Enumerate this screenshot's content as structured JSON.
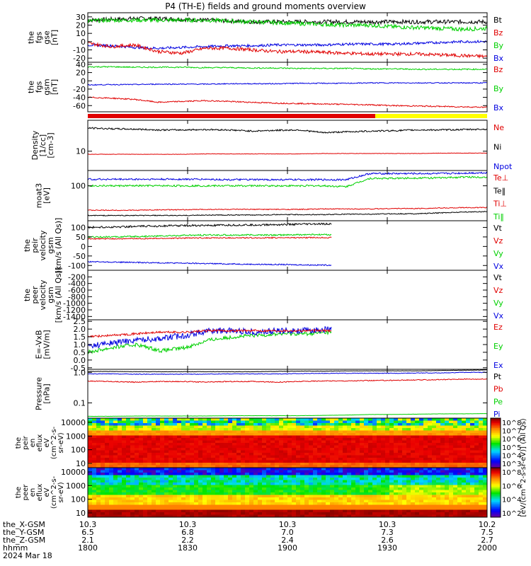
{
  "title": "P4 (TH-E) fields and ground moments overview",
  "colors": {
    "black": "#000000",
    "red": "#e00000",
    "green": "#00d000",
    "blue": "#0000e0",
    "yellow": "#ffff00"
  },
  "panels": [
    {
      "id": "fgs_gse",
      "ylabel": [
        "the",
        "fgs",
        "gse",
        "[nT]"
      ],
      "ticks": [
        "30",
        "20",
        "10",
        "0",
        "-10",
        "-20"
      ],
      "tickvals": [
        30,
        20,
        10,
        0,
        -10,
        -20
      ],
      "ylim": [
        -25,
        35
      ],
      "legend": [
        {
          "text": "Bt",
          "color": "black"
        },
        {
          "text": "Bz",
          "color": "red"
        },
        {
          "text": "By",
          "color": "green"
        },
        {
          "text": "Bx",
          "color": "blue"
        }
      ],
      "series": [
        {
          "name": "Bt",
          "color": "black",
          "base": [
            26,
            27,
            28,
            28,
            27,
            26,
            25,
            24,
            24,
            24,
            24,
            24,
            24,
            24,
            24,
            24,
            24,
            24
          ],
          "noise": 2.5
        },
        {
          "name": "Bz",
          "color": "green",
          "base": [
            25,
            26,
            26,
            26,
            26,
            26,
            25,
            24,
            23,
            22,
            21,
            20,
            20,
            18,
            17,
            16,
            15,
            16
          ],
          "noise": 2.5
        },
        {
          "name": "By",
          "color": "blue",
          "base": [
            -4,
            -5,
            -7,
            -8,
            -7,
            -6,
            -5,
            -5,
            -4,
            -4,
            -4,
            -3,
            -3,
            -3,
            -2,
            -1,
            0,
            0
          ],
          "noise": 1.5
        },
        {
          "name": "Bx",
          "color": "red",
          "base": [
            -2,
            -6,
            -4,
            -12,
            -14,
            -8,
            -8,
            -10,
            -12,
            -12,
            -13,
            -14,
            -15,
            -15,
            -15,
            -16,
            -17,
            -18
          ],
          "noise": 2
        }
      ]
    },
    {
      "id": "fgs_gsm",
      "ylabel": [
        "the",
        "fgs",
        "gsm",
        "[nT]"
      ],
      "ticks": [
        "40",
        "20",
        "0",
        "-20",
        "-40",
        "-60"
      ],
      "tickvals": [
        40,
        20,
        0,
        -20,
        -40,
        -60
      ],
      "ylim": [
        -75,
        45
      ],
      "legend": [
        {
          "text": "Bz",
          "color": "red"
        },
        {
          "text": "By",
          "color": "green"
        },
        {
          "text": "Bx",
          "color": "blue"
        }
      ],
      "series": [
        {
          "name": "Bz",
          "color": "green",
          "base": [
            34,
            34,
            33,
            33,
            33,
            32,
            32,
            31,
            31,
            30,
            30,
            30,
            29,
            29,
            28,
            28,
            28,
            28
          ],
          "noise": 1.5
        },
        {
          "name": "By",
          "color": "blue",
          "base": [
            -10,
            -9,
            -9,
            -8,
            -8,
            -8,
            -7,
            -7,
            -7,
            -6,
            -6,
            -6,
            -5,
            -5,
            -5,
            -5,
            -5,
            -5
          ],
          "noise": 1.2
        },
        {
          "name": "Bx",
          "color": "red",
          "base": [
            -40,
            -42,
            -45,
            -52,
            -50,
            -48,
            -50,
            -52,
            -54,
            -55,
            -56,
            -57,
            -58,
            -60,
            -61,
            -62,
            -63,
            -64
          ],
          "noise": 1.5
        }
      ]
    },
    {
      "id": "density",
      "ylabel": [
        "Density",
        "[1/cc]",
        "[cm-3]"
      ],
      "ticks": [
        "10"
      ],
      "tickvals": [
        1.0
      ],
      "ylim": [
        0.5,
        1.8
      ],
      "log": true,
      "legend": [
        {
          "text": "Ne",
          "color": "red"
        },
        {
          "text": "Ni",
          "color": "black"
        },
        {
          "text": "Npot",
          "color": "blue"
        }
      ],
      "series": [
        {
          "name": "Ne",
          "color": "black",
          "base": [
            1.6,
            1.58,
            1.57,
            1.55,
            1.55,
            1.56,
            1.55,
            1.52,
            1.54,
            1.55,
            1.48,
            1.5,
            1.52,
            1.53,
            1.55,
            1.55,
            1.56,
            1.57
          ],
          "noise": 0.02
        },
        {
          "name": "Ni",
          "color": "red",
          "base": [
            0.92,
            0.92,
            0.92,
            0.92,
            0.92,
            0.93,
            0.93,
            0.93,
            0.93,
            0.93,
            0.94,
            0.94,
            0.94,
            0.94,
            0.94,
            0.95,
            0.95,
            0.95
          ],
          "noise": 0.005
        }
      ]
    },
    {
      "id": "temp",
      "ylabel": [
        "moat3",
        "[eV]"
      ],
      "ticks": [
        "100"
      ],
      "tickvals": [
        2.0
      ],
      "ylim": [
        1.2,
        2.35
      ],
      "log": true,
      "legend": [
        {
          "text": "Te⊥",
          "color": "red"
        },
        {
          "text": "Te‖",
          "color": "black"
        },
        {
          "text": "Ti⊥",
          "color": "red"
        },
        {
          "text": "Ti‖",
          "color": "green"
        }
      ],
      "series": [
        {
          "name": "Ti⊥",
          "color": "blue",
          "base": [
            2.15,
            2.15,
            2.15,
            2.15,
            2.15,
            2.15,
            2.14,
            2.14,
            2.14,
            2.14,
            2.14,
            2.14,
            2.28,
            2.28,
            2.28,
            2.28,
            2.29,
            2.3
          ],
          "noise": 0.02
        },
        {
          "name": "Ti‖",
          "color": "green",
          "base": [
            2.0,
            2.0,
            2.0,
            2.0,
            2.0,
            2.0,
            2.0,
            2.0,
            2.0,
            2.0,
            2.0,
            1.98,
            2.17,
            2.17,
            2.18,
            2.18,
            2.2,
            2.2
          ],
          "noise": 0.02
        },
        {
          "name": "Te⊥",
          "color": "red",
          "base": [
            1.44,
            1.44,
            1.44,
            1.45,
            1.45,
            1.46,
            1.46,
            1.46,
            1.46,
            1.46,
            1.47,
            1.47,
            1.47,
            1.48,
            1.48,
            1.49,
            1.5,
            1.5
          ],
          "noise": 0.01
        },
        {
          "name": "Te‖",
          "color": "black",
          "base": [
            1.32,
            1.32,
            1.32,
            1.32,
            1.32,
            1.33,
            1.33,
            1.33,
            1.34,
            1.34,
            1.34,
            1.35,
            1.35,
            1.36,
            1.36,
            1.38,
            1.4,
            1.41
          ],
          "noise": 0.01
        }
      ]
    },
    {
      "id": "peir_vel",
      "ylabel": [
        "the",
        "peir",
        "velocity",
        "gsm",
        "[km/s (All Qs)]"
      ],
      "ticks": [
        "100",
        "50",
        "0",
        "-50",
        "-100"
      ],
      "tickvals": [
        100,
        50,
        0,
        -50,
        -100
      ],
      "ylim": [
        -125,
        135
      ],
      "legend": [
        {
          "text": "Vt",
          "color": "black"
        },
        {
          "text": "Vz",
          "color": "red"
        },
        {
          "text": "Vy",
          "color": "green"
        },
        {
          "text": "Vx",
          "color": "blue"
        }
      ],
      "end": 0.61,
      "series": [
        {
          "name": "Vt",
          "color": "black",
          "base": [
            100,
            102,
            105,
            108,
            110,
            110,
            112,
            113,
            115,
            117,
            118
          ],
          "noise": 5
        },
        {
          "name": "Vz",
          "color": "green",
          "base": [
            50,
            50,
            52,
            55,
            58,
            60,
            60,
            60,
            60,
            62,
            62
          ],
          "noise": 4
        },
        {
          "name": "Vy",
          "color": "red",
          "base": [
            40,
            40,
            41,
            42,
            44,
            45,
            45,
            45,
            46,
            46,
            47
          ],
          "noise": 3
        },
        {
          "name": "Vx",
          "color": "blue",
          "base": [
            -80,
            -82,
            -84,
            -86,
            -88,
            -90,
            -92,
            -94,
            -95,
            -97,
            -98
          ],
          "noise": 3
        }
      ]
    },
    {
      "id": "peer_vel",
      "ylabel": [
        "the",
        "peer",
        "velocity",
        "gsm",
        "[km/s (All Qs)]"
      ],
      "ticks": [
        "-200",
        "-400",
        "-600",
        "-800",
        "-1000",
        "-1200",
        "-1400"
      ],
      "tickvals": [
        -200,
        -400,
        -600,
        -800,
        -1000,
        -1200,
        -1400
      ],
      "ylim": [
        -1500,
        0
      ],
      "legend": [
        {
          "text": "Vt",
          "color": "black"
        },
        {
          "text": "Vz",
          "color": "red"
        },
        {
          "text": "Vy",
          "color": "green"
        },
        {
          "text": "Vx",
          "color": "blue"
        }
      ],
      "series": []
    },
    {
      "id": "efield",
      "ylabel": [
        "E=-VxB",
        "[mV/m]"
      ],
      "ticks": [
        "2.5",
        "2.0",
        "1.5",
        "1.0",
        "0.5",
        "0.0",
        "-0.5"
      ],
      "tickvals": [
        2.5,
        2.0,
        1.5,
        1.0,
        0.5,
        0.0,
        -0.5
      ],
      "ylim": [
        -0.6,
        2.6
      ],
      "legend": [
        {
          "text": "Ez",
          "color": "red"
        },
        {
          "text": "Ey",
          "color": "green"
        },
        {
          "text": "Ex",
          "color": "blue"
        }
      ],
      "end": 0.61,
      "series": [
        {
          "name": "Ey",
          "color": "green",
          "base": [
            0.5,
            0.8,
            1.0,
            0.6,
            0.8,
            1.3,
            1.5,
            1.6,
            1.7,
            1.7,
            1.8
          ],
          "noise": 0.12
        },
        {
          "name": "Ex",
          "color": "blue",
          "base": [
            0.9,
            1.1,
            1.3,
            1.4,
            1.6,
            1.9,
            1.9,
            1.8,
            1.9,
            1.9,
            2.0
          ],
          "noise": 0.2
        },
        {
          "name": "Ez",
          "color": "red",
          "base": [
            1.5,
            1.6,
            1.7,
            1.8,
            1.8,
            1.9,
            1.9,
            1.9,
            1.9,
            1.9,
            1.9
          ],
          "noise": 0.07
        }
      ]
    },
    {
      "id": "pressure",
      "ylabel": [
        "Pressure",
        "[nPa]"
      ],
      "ticks": [
        "1.0",
        "0.1"
      ],
      "tickvals": [
        0,
        -1
      ],
      "ylim": [
        -1.5,
        0.1
      ],
      "log": true,
      "legend": [
        {
          "text": "Pt",
          "color": "black"
        },
        {
          "text": "Pb",
          "color": "red"
        },
        {
          "text": "Pe",
          "color": "green"
        },
        {
          "text": "Pi",
          "color": "blue"
        }
      ],
      "series": [
        {
          "name": "Pt",
          "color": "black",
          "base": [
            0.03,
            0.03,
            0.02,
            0.02,
            0.02,
            0.02,
            0.02,
            0.02,
            0.03,
            0.04,
            0.04,
            0.05,
            0.05,
            0.05,
            0.05,
            0.06,
            0.07,
            0.08
          ],
          "noise": 0.005
        },
        {
          "name": "Pi",
          "color": "blue",
          "base": [
            -0.05,
            -0.05,
            -0.06,
            -0.06,
            -0.06,
            -0.06,
            -0.05,
            -0.05,
            -0.05,
            -0.04,
            -0.03,
            -0.03,
            -0.03,
            -0.03,
            -0.02,
            -0.02,
            0.0,
            0.0
          ],
          "noise": 0.01
        },
        {
          "name": "Pb",
          "color": "red",
          "base": [
            -0.28,
            -0.3,
            -0.32,
            -0.3,
            -0.3,
            -0.32,
            -0.3,
            -0.3,
            -0.32,
            -0.3,
            -0.28,
            -0.28,
            -0.27,
            -0.26,
            -0.25,
            -0.24,
            -0.22,
            -0.22
          ],
          "noise": 0.015
        },
        {
          "name": "Pe",
          "color": "green",
          "base": [
            -1.44,
            -1.44,
            -1.43,
            -1.43,
            -1.43,
            -1.43,
            -1.42,
            -1.42,
            -1.42,
            -1.42,
            -1.41,
            -1.4,
            -1.38,
            -1.38,
            -1.37,
            -1.36,
            -1.36,
            -1.35
          ],
          "noise": 0.003
        }
      ]
    }
  ],
  "spectrograms": [
    {
      "id": "peir_eflux",
      "ylabel": [
        "the",
        "peir",
        "en",
        "eflux",
        "eV",
        "(cm^2-s-",
        "sr-eV)"
      ],
      "ticks": [
        "10000",
        "1000",
        "100",
        "10"
      ],
      "kind": "ion"
    },
    {
      "id": "peer_eflux",
      "ylabel": [
        "the",
        "peer",
        "en",
        "eflux",
        "eV",
        "(cm^2-s-",
        "sr-eV)"
      ],
      "ticks": [
        "10000",
        "1000",
        "100",
        "10"
      ],
      "kind": "electron"
    }
  ],
  "colorbar": {
    "label": "[eV/(cm^2-s-sr-eV)] (All Qs)",
    "ticks1": [
      "10^8",
      "10^7",
      "10^6",
      "10^5",
      "10^4",
      "10^3"
    ],
    "ticks2": [
      "10^8",
      "10^6",
      "10^4",
      "10^2"
    ]
  },
  "xaxis": {
    "rows": [
      {
        "label": "the_X-GSM",
        "values": [
          "10.3",
          "10.3",
          "10.3",
          "10.3",
          "10.2"
        ]
      },
      {
        "label": "the_Y-GSM",
        "values": [
          "6.5",
          "6.8",
          "7.0",
          "7.3",
          "7.5"
        ]
      },
      {
        "label": "the_Z-GSM",
        "values": [
          "2.1",
          "2.2",
          "2.4",
          "2.6",
          "2.7"
        ]
      },
      {
        "label": "hhmm",
        "values": [
          "1800",
          "1830",
          "1900",
          "1930",
          "2000"
        ]
      }
    ],
    "date": "2024 Mar 18"
  }
}
